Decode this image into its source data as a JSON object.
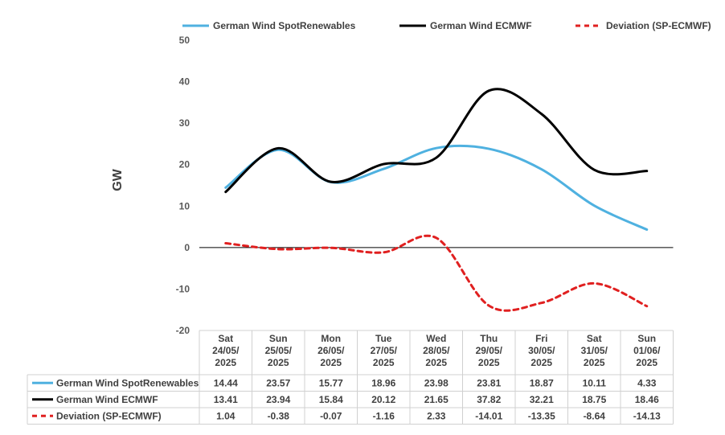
{
  "chart_data": {
    "type": "line",
    "ylabel": "GW",
    "ylim": [
      -20,
      50
    ],
    "yticks": [
      50,
      40,
      30,
      20,
      10,
      0,
      -10,
      -20
    ],
    "categories": [
      [
        "Sat",
        "24/05/",
        "2025"
      ],
      [
        "Sun",
        "25/05/",
        "2025"
      ],
      [
        "Mon",
        "26/05/",
        "2025"
      ],
      [
        "Tue",
        "27/05/",
        "2025"
      ],
      [
        "Wed",
        "28/05/",
        "2025"
      ],
      [
        "Thu",
        "29/05/",
        "2025"
      ],
      [
        "Fri",
        "30/05/",
        "2025"
      ],
      [
        "Sat",
        "31/05/",
        "2025"
      ],
      [
        "Sun",
        "01/06/",
        "2025"
      ]
    ],
    "legend_position": "top",
    "series": [
      {
        "name": "German Wind SpotRenewables",
        "color": "#4fb1e0",
        "dash": "solid",
        "values": [
          14.44,
          23.57,
          15.77,
          18.96,
          23.98,
          23.81,
          18.87,
          10.11,
          4.33
        ],
        "labels": [
          "14.44",
          "23.57",
          "15.77",
          "18.96",
          "23.98",
          "23.81",
          "18.87",
          "10.11",
          "4.33"
        ]
      },
      {
        "name": "German Wind ECMWF",
        "color": "#000000",
        "dash": "solid",
        "values": [
          13.41,
          23.94,
          15.84,
          20.12,
          21.65,
          37.82,
          32.21,
          18.75,
          18.46
        ],
        "labels": [
          "13.41",
          "23.94",
          "15.84",
          "20.12",
          "21.65",
          "37.82",
          "32.21",
          "18.75",
          "18.46"
        ]
      },
      {
        "name": "Deviation (SP-ECMWF)",
        "color": "#e02020",
        "dash": "dashed",
        "values": [
          1.04,
          -0.38,
          -0.07,
          -1.16,
          2.33,
          -14.01,
          -13.35,
          -8.64,
          -14.13
        ],
        "labels": [
          "1.04",
          "-0.38",
          "-0.07",
          "-1.16",
          "2.33",
          "-14.01",
          "-13.35",
          "-8.64",
          "-14.13"
        ]
      }
    ]
  }
}
